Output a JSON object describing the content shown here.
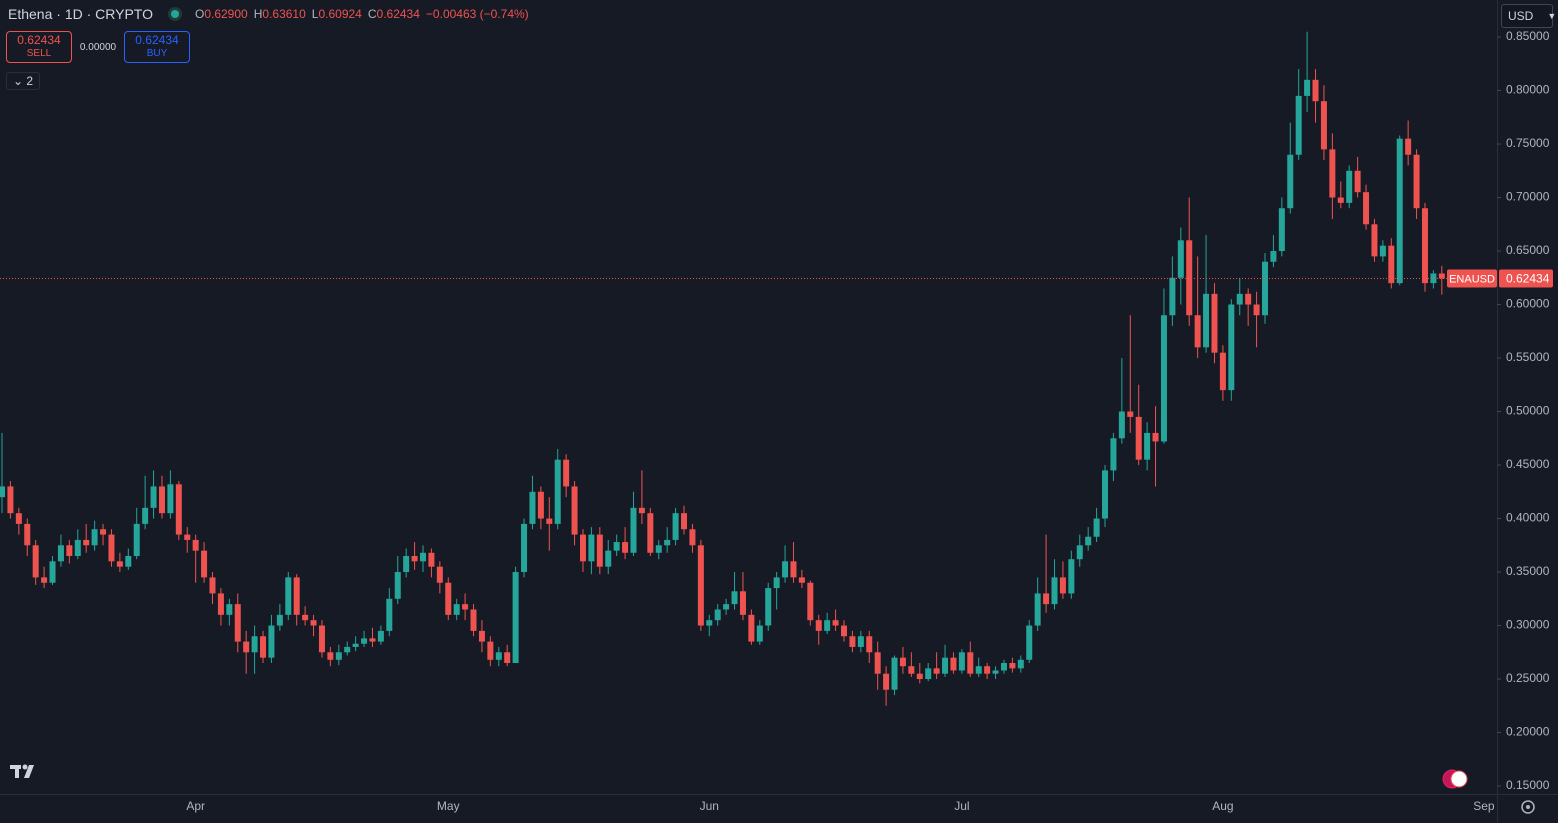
{
  "header": {
    "symbol": "Ethena · 1D · CRYPTO",
    "ohlc": [
      {
        "key": "O",
        "value": "0.62900"
      },
      {
        "key": "H",
        "value": "0.63610"
      },
      {
        "key": "L",
        "value": "0.60924"
      },
      {
        "key": "C",
        "value": "0.62434"
      }
    ],
    "change": "−0.00463 (−0.74%)",
    "sell_price": "0.62434",
    "sell_label": "SELL",
    "spread": "0.00000",
    "buy_price": "0.62434",
    "buy_label": "BUY",
    "indicators_count": "2",
    "currency": "USD"
  },
  "chart_data": {
    "type": "candlestick",
    "categories": [
      null,
      null,
      null,
      null,
      null,
      null,
      null,
      null,
      null,
      null,
      null,
      null,
      null,
      null,
      null,
      null,
      null,
      null,
      null,
      null,
      null,
      null,
      null,
      "Apr",
      null,
      null,
      null,
      null,
      null,
      null,
      null,
      null,
      null,
      null,
      null,
      null,
      null,
      null,
      null,
      null,
      null,
      null,
      null,
      null,
      null,
      null,
      null,
      null,
      null,
      null,
      null,
      null,
      null,
      "May",
      null,
      null,
      null,
      null,
      null,
      null,
      null,
      null,
      null,
      null,
      null,
      null,
      null,
      null,
      null,
      null,
      null,
      null,
      null,
      null,
      null,
      null,
      null,
      null,
      null,
      null,
      null,
      null,
      null,
      null,
      "Jun",
      null,
      null,
      null,
      null,
      null,
      null,
      null,
      null,
      null,
      null,
      null,
      null,
      null,
      null,
      null,
      null,
      null,
      null,
      null,
      null,
      null,
      null,
      null,
      null,
      null,
      null,
      null,
      null,
      null,
      "Jul",
      null,
      null,
      null,
      null,
      null,
      null,
      null,
      null,
      null,
      null,
      null,
      null,
      null,
      null,
      null,
      null,
      null,
      null,
      null,
      null,
      null,
      null,
      null,
      null,
      null,
      null,
      null,
      null,
      null,
      null,
      "Aug",
      null,
      null,
      null,
      null,
      null,
      null,
      null,
      null,
      null,
      null,
      null,
      null,
      null,
      null,
      null,
      null,
      null,
      null,
      null,
      null,
      null,
      null,
      null,
      null,
      null,
      null,
      null,
      null,
      null,
      null,
      "Sep"
    ],
    "series": [
      {
        "name": "ENAUSD",
        "up_color": "#26a69a",
        "down_color": "#ef5350",
        "open": [
          0.42,
          0.43,
          0.405,
          0.395,
          0.375,
          0.345,
          0.34,
          0.36,
          0.375,
          0.365,
          0.38,
          0.375,
          0.39,
          0.385,
          0.36,
          0.355,
          0.365,
          0.395,
          0.41,
          0.43,
          0.405,
          0.432,
          0.385,
          0.38,
          0.37,
          0.345,
          0.33,
          0.31,
          0.32,
          0.285,
          0.275,
          0.29,
          0.27,
          0.3,
          0.31,
          0.345,
          0.31,
          0.305,
          0.3,
          0.275,
          0.268,
          0.275,
          0.28,
          0.283,
          0.288,
          0.285,
          0.295,
          0.325,
          0.35,
          0.365,
          0.36,
          0.368,
          0.355,
          0.34,
          0.31,
          0.32,
          0.315,
          0.295,
          0.285,
          0.268,
          0.275,
          0.265,
          0.35,
          0.395,
          0.425,
          0.4,
          0.395,
          0.455,
          0.43,
          0.385,
          0.36,
          0.385,
          0.355,
          0.37,
          0.378,
          0.368,
          0.41,
          0.405,
          0.368,
          0.375,
          0.38,
          0.405,
          0.39,
          0.375,
          0.3,
          0.305,
          0.315,
          0.32,
          0.332,
          0.31,
          0.285,
          0.3,
          0.335,
          0.345,
          0.36,
          0.345,
          0.34,
          0.305,
          0.295,
          0.305,
          0.3,
          0.29,
          0.28,
          0.29,
          0.275,
          0.255,
          0.24,
          0.27,
          0.262,
          0.255,
          0.25,
          0.26,
          0.255,
          0.27,
          0.258,
          0.275,
          0.255,
          0.262,
          0.255,
          0.258,
          0.265,
          0.26,
          0.268,
          0.3,
          0.33,
          0.32,
          0.345,
          0.33,
          0.362,
          0.375,
          0.383,
          0.4,
          0.445,
          0.475,
          0.5,
          0.495,
          0.455,
          0.48,
          0.472,
          0.59,
          0.625,
          0.66,
          0.59,
          0.56,
          0.61,
          0.555,
          0.52,
          0.6,
          0.61,
          0.6,
          0.59,
          0.64,
          0.65,
          0.69,
          0.74,
          0.795,
          0.81,
          0.79,
          0.745,
          0.7,
          0.695,
          0.725,
          0.705,
          0.675,
          0.645,
          0.655,
          0.62,
          0.755,
          0.74,
          0.69,
          0.62,
          0.629,
          null,
          null,
          null,
          null,
          null
        ],
        "high": [
          0.48,
          0.435,
          0.41,
          0.4,
          0.38,
          0.355,
          0.365,
          0.385,
          0.38,
          0.39,
          0.395,
          0.398,
          0.395,
          0.39,
          0.368,
          0.372,
          0.41,
          0.44,
          0.445,
          0.44,
          0.445,
          0.435,
          0.392,
          0.385,
          0.378,
          0.35,
          0.335,
          0.325,
          0.33,
          0.295,
          0.3,
          0.295,
          0.31,
          0.32,
          0.35,
          0.348,
          0.318,
          0.31,
          0.305,
          0.28,
          0.282,
          0.285,
          0.29,
          0.295,
          0.298,
          0.3,
          0.335,
          0.365,
          0.372,
          0.378,
          0.375,
          0.372,
          0.36,
          0.345,
          0.325,
          0.33,
          0.32,
          0.305,
          0.29,
          0.28,
          0.282,
          0.355,
          0.4,
          0.44,
          0.43,
          0.42,
          0.465,
          0.46,
          0.435,
          0.39,
          0.392,
          0.392,
          0.38,
          0.385,
          0.392,
          0.425,
          0.445,
          0.41,
          0.38,
          0.392,
          0.41,
          0.412,
          0.395,
          0.38,
          0.31,
          0.32,
          0.325,
          0.35,
          0.35,
          0.315,
          0.305,
          0.34,
          0.35,
          0.375,
          0.378,
          0.352,
          0.342,
          0.31,
          0.312,
          0.315,
          0.305,
          0.295,
          0.295,
          0.295,
          0.285,
          0.262,
          0.272,
          0.28,
          0.275,
          0.265,
          0.265,
          0.275,
          0.282,
          0.275,
          0.278,
          0.285,
          0.27,
          0.265,
          0.262,
          0.268,
          0.27,
          0.272,
          0.305,
          0.345,
          0.385,
          0.362,
          0.36,
          0.37,
          0.385,
          0.392,
          0.41,
          0.45,
          0.48,
          0.55,
          0.59,
          0.525,
          0.49,
          0.505,
          0.615,
          0.645,
          0.672,
          0.7,
          0.645,
          0.665,
          0.62,
          0.562,
          0.605,
          0.625,
          0.615,
          0.612,
          0.648,
          0.665,
          0.7,
          0.77,
          0.82,
          0.855,
          0.82,
          0.805,
          0.76,
          0.715,
          0.73,
          0.738,
          0.712,
          0.68,
          0.66,
          0.662,
          0.758,
          0.772,
          0.745,
          0.695,
          0.632,
          0.6361,
          null,
          null,
          null,
          null,
          null
        ],
        "low": [
          0.405,
          0.4,
          0.385,
          0.365,
          0.338,
          0.335,
          0.338,
          0.355,
          0.358,
          0.362,
          0.368,
          0.37,
          0.375,
          0.355,
          0.35,
          0.352,
          0.362,
          0.39,
          0.4,
          0.4,
          0.4,
          0.38,
          0.368,
          0.34,
          0.34,
          0.32,
          0.3,
          0.3,
          0.275,
          0.255,
          0.255,
          0.265,
          0.265,
          0.295,
          0.305,
          0.3,
          0.3,
          0.29,
          0.27,
          0.262,
          0.263,
          0.272,
          0.276,
          0.28,
          0.28,
          0.282,
          0.29,
          0.32,
          0.345,
          0.352,
          0.35,
          0.345,
          0.33,
          0.305,
          0.305,
          0.305,
          0.29,
          0.275,
          0.262,
          0.262,
          0.262,
          0.265,
          0.345,
          0.39,
          0.39,
          0.37,
          0.39,
          0.42,
          0.375,
          0.35,
          0.348,
          0.348,
          0.348,
          0.365,
          0.362,
          0.365,
          0.395,
          0.365,
          0.362,
          0.368,
          0.375,
          0.385,
          0.368,
          0.295,
          0.29,
          0.3,
          0.31,
          0.315,
          0.305,
          0.282,
          0.282,
          0.295,
          0.315,
          0.34,
          0.34,
          0.335,
          0.3,
          0.282,
          0.292,
          0.295,
          0.285,
          0.275,
          0.275,
          0.265,
          0.24,
          0.225,
          0.235,
          0.255,
          0.252,
          0.246,
          0.248,
          0.25,
          0.252,
          0.255,
          0.255,
          0.252,
          0.252,
          0.25,
          0.25,
          0.255,
          0.256,
          0.256,
          0.265,
          0.295,
          0.312,
          0.315,
          0.325,
          0.325,
          0.355,
          0.37,
          0.378,
          0.392,
          0.435,
          0.47,
          0.48,
          0.45,
          0.445,
          0.43,
          0.47,
          0.58,
          0.6,
          0.58,
          0.55,
          0.555,
          0.545,
          0.51,
          0.51,
          0.59,
          0.58,
          0.56,
          0.582,
          0.635,
          0.645,
          0.685,
          0.735,
          0.78,
          0.77,
          0.735,
          0.68,
          0.69,
          0.69,
          0.7,
          0.67,
          0.64,
          0.64,
          0.615,
          0.618,
          0.73,
          0.68,
          0.612,
          0.615,
          0.60924,
          null,
          null,
          null,
          null,
          null
        ],
        "close": [
          0.43,
          0.405,
          0.395,
          0.375,
          0.345,
          0.34,
          0.36,
          0.375,
          0.365,
          0.38,
          0.375,
          0.39,
          0.385,
          0.36,
          0.355,
          0.365,
          0.395,
          0.41,
          0.43,
          0.405,
          0.432,
          0.385,
          0.38,
          0.37,
          0.345,
          0.33,
          0.31,
          0.32,
          0.285,
          0.275,
          0.29,
          0.27,
          0.3,
          0.31,
          0.345,
          0.31,
          0.305,
          0.3,
          0.275,
          0.268,
          0.275,
          0.28,
          0.283,
          0.288,
          0.285,
          0.295,
          0.325,
          0.35,
          0.365,
          0.36,
          0.368,
          0.355,
          0.34,
          0.31,
          0.32,
          0.315,
          0.295,
          0.285,
          0.268,
          0.275,
          0.265,
          0.35,
          0.395,
          0.425,
          0.4,
          0.395,
          0.455,
          0.43,
          0.385,
          0.36,
          0.385,
          0.355,
          0.37,
          0.378,
          0.368,
          0.41,
          0.405,
          0.368,
          0.375,
          0.38,
          0.405,
          0.39,
          0.375,
          0.3,
          0.305,
          0.315,
          0.32,
          0.332,
          0.31,
          0.285,
          0.3,
          0.335,
          0.345,
          0.36,
          0.345,
          0.34,
          0.305,
          0.295,
          0.305,
          0.3,
          0.29,
          0.28,
          0.29,
          0.275,
          0.255,
          0.24,
          0.27,
          0.262,
          0.255,
          0.25,
          0.26,
          0.255,
          0.27,
          0.258,
          0.275,
          0.255,
          0.262,
          0.255,
          0.258,
          0.265,
          0.26,
          0.268,
          0.3,
          0.33,
          0.32,
          0.345,
          0.33,
          0.362,
          0.375,
          0.383,
          0.4,
          0.445,
          0.475,
          0.5,
          0.495,
          0.455,
          0.48,
          0.472,
          0.59,
          0.625,
          0.66,
          0.59,
          0.56,
          0.61,
          0.555,
          0.52,
          0.6,
          0.61,
          0.6,
          0.59,
          0.64,
          0.65,
          0.69,
          0.74,
          0.795,
          0.81,
          0.79,
          0.745,
          0.7,
          0.695,
          0.725,
          0.705,
          0.675,
          0.645,
          0.655,
          0.62,
          0.755,
          0.74,
          0.69,
          0.62,
          0.629,
          0.62434,
          null,
          null,
          null,
          null,
          null
        ]
      }
    ],
    "ylim": [
      0.1435,
      0.8846
    ],
    "yticks": [
      {
        "value": 0.15,
        "label": "0.15000"
      },
      {
        "value": 0.2,
        "label": "0.20000"
      },
      {
        "value": 0.25,
        "label": "0.25000"
      },
      {
        "value": 0.3,
        "label": "0.30000"
      },
      {
        "value": 0.35,
        "label": "0.35000"
      },
      {
        "value": 0.4,
        "label": "0.40000"
      },
      {
        "value": 0.45,
        "label": "0.45000"
      },
      {
        "value": 0.5,
        "label": "0.50000"
      },
      {
        "value": 0.55,
        "label": "0.55000"
      },
      {
        "value": 0.6,
        "label": "0.60000"
      },
      {
        "value": 0.65,
        "label": "0.65000"
      },
      {
        "value": 0.7,
        "label": "0.70000"
      },
      {
        "value": 0.75,
        "label": "0.75000"
      },
      {
        "value": 0.8,
        "label": "0.80000"
      },
      {
        "value": 0.85,
        "label": "0.85000"
      }
    ],
    "grid": false
  }
}
